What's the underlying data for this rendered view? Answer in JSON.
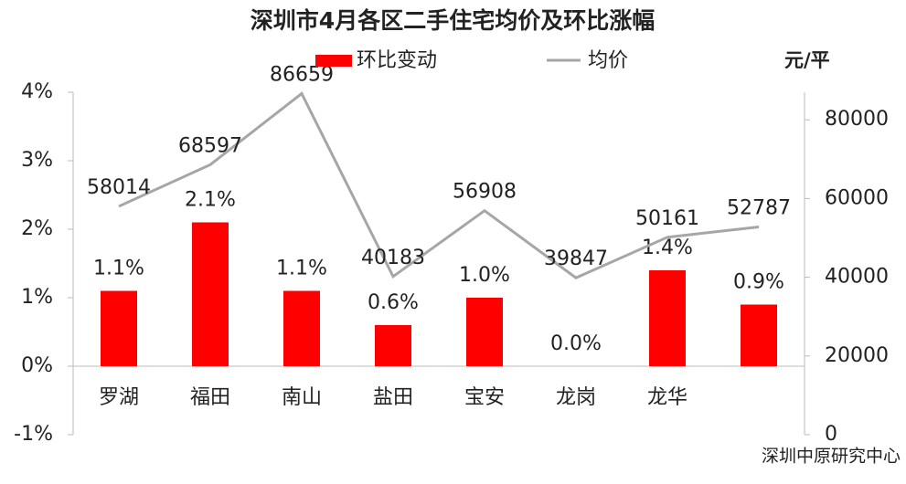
{
  "chart_data": {
    "type": "bar",
    "title": "深圳市4月各区二手住宅均价及环比涨幅",
    "categories": [
      "罗湖",
      "福田",
      "南山",
      "盐田",
      "宝安",
      "龙岗",
      "龙华",
      ""
    ],
    "series": [
      {
        "name": "环比变动",
        "color": "#ff0000",
        "type": "bar",
        "values": [
          1.1,
          2.1,
          1.1,
          0.6,
          1.0,
          0.0,
          1.4,
          0.9
        ],
        "value_labels": [
          "1.1%",
          "2.1%",
          "1.1%",
          "0.6%",
          "1.0%",
          "0.0%",
          "1.4%",
          "0.9%"
        ]
      },
      {
        "name": "均价",
        "color": "#a6a6a6",
        "type": "line",
        "axis": "y2",
        "values": [
          58014,
          68597,
          86659,
          40183,
          56908,
          39847,
          50161,
          52787
        ]
      }
    ],
    "ylim": [
      -1,
      4
    ],
    "yticks": [
      {
        "value": -1,
        "label": "-1%"
      },
      {
        "value": 0,
        "label": "0%"
      },
      {
        "value": 1,
        "label": "1%"
      },
      {
        "value": 2,
        "label": "2%"
      },
      {
        "value": 3,
        "label": "3%"
      },
      {
        "value": 4,
        "label": "4%"
      }
    ],
    "y2lim": [
      0,
      87000
    ],
    "y2ticks": [
      0,
      20000,
      40000,
      60000,
      80000
    ],
    "y2_label": "元/平",
    "source": "深圳中原研究中心",
    "grid": false
  }
}
